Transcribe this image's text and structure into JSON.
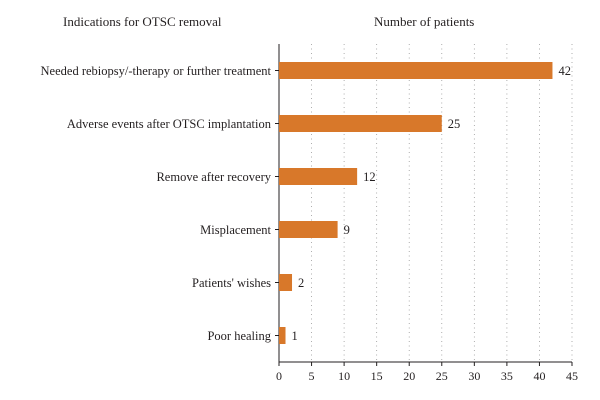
{
  "chart_data": {
    "type": "bar",
    "orientation": "horizontal",
    "category_header": "Indications for OTSC removal",
    "value_header": "Number of patients",
    "categories": [
      "Needed rebiopsy/-therapy or further treatment",
      "Adverse events after OTSC implantation",
      "Remove after recovery",
      "Misplacement",
      "Patients' wishes",
      "Poor healing"
    ],
    "values": [
      42,
      25,
      12,
      9,
      2,
      1
    ],
    "xlim": [
      0,
      45
    ],
    "xticks": [
      0,
      5,
      10,
      15,
      20,
      25,
      30,
      35,
      40,
      45
    ],
    "grid": "vertical dotted",
    "bar_color": "#d8782a",
    "data_labels": true
  }
}
